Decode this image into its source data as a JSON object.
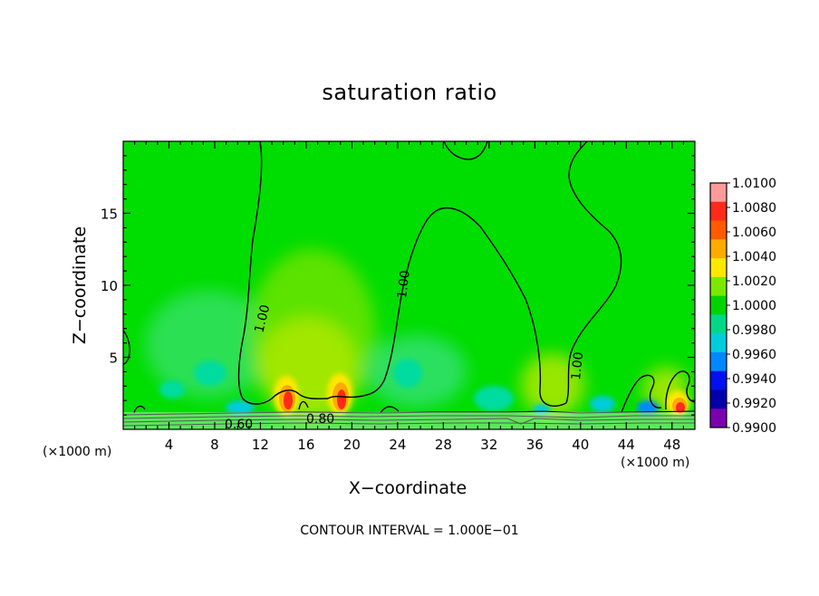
{
  "chart_data": {
    "type": "heatmap",
    "title": "saturation ratio",
    "xlabel": "X−coordinate",
    "ylabel": "Z−coordinate",
    "x_unit_left": "(×1000 m)",
    "x_unit_right": "(×1000 m)",
    "xlim": [
      0,
      50
    ],
    "ylim": [
      0,
      20
    ],
    "x_ticks": [
      4,
      8,
      12,
      16,
      20,
      24,
      28,
      32,
      36,
      40,
      44,
      48
    ],
    "y_ticks": [
      5,
      10,
      15
    ],
    "colorbar": {
      "levels": [
        1.01,
        1.008,
        1.006,
        1.004,
        1.002,
        1.0,
        0.998,
        0.996,
        0.994,
        0.992,
        0.99
      ],
      "labels": [
        "1.0100",
        "1.0080",
        "1.0060",
        "1.0040",
        "1.0020",
        "1.0000",
        "0.9980",
        "0.9960",
        "0.9940",
        "0.9920",
        "0.9900"
      ],
      "colors": [
        "#ff9a9a",
        "#ff2a1a",
        "#ff5a00",
        "#ffaa00",
        "#ffe800",
        "#7ae800",
        "#00d400",
        "#00d888",
        "#00ccdd",
        "#0088ff",
        "#0010ee",
        "#0000a8",
        "#7a00b0"
      ]
    },
    "background_value": 1.0,
    "background_color": "#00dd00",
    "contour_labels": [
      "1.00",
      "1.00",
      "1.00",
      "0.80",
      "0.60"
    ],
    "footer": "CONTOUR INTERVAL = 1.000E−01"
  }
}
